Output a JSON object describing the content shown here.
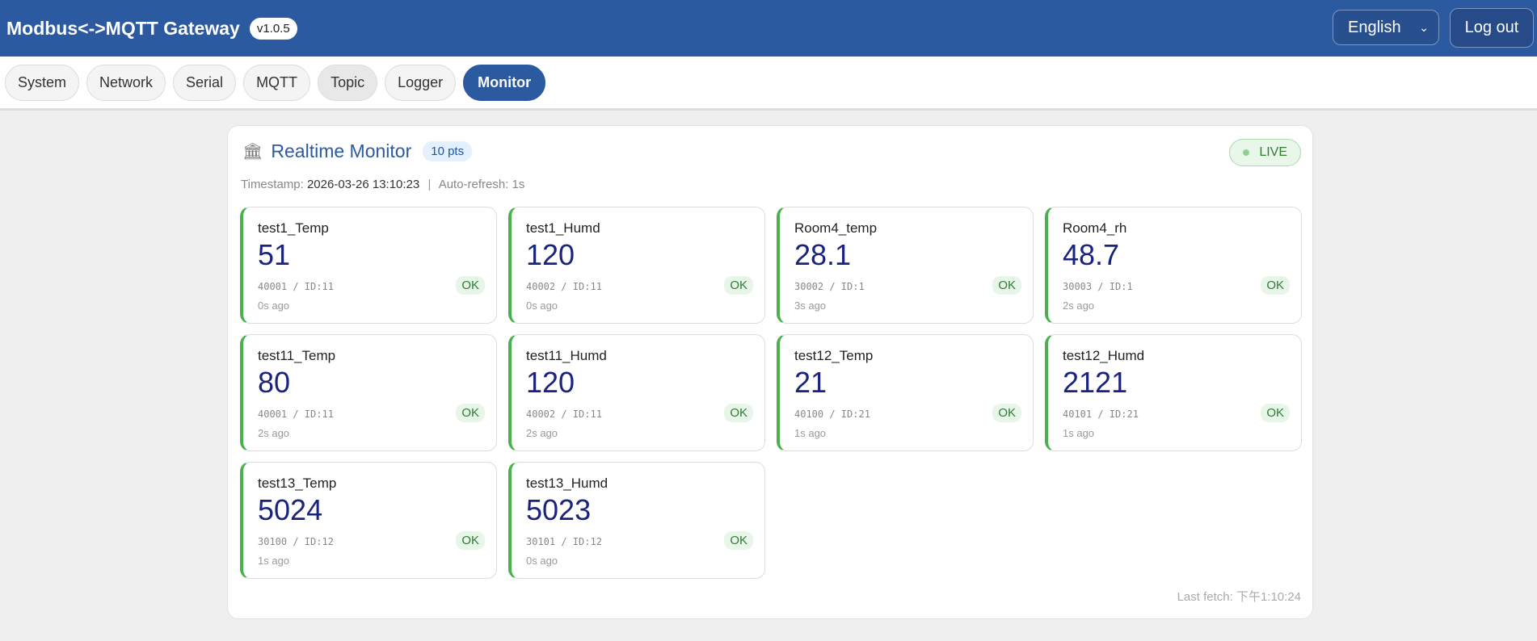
{
  "header": {
    "title": "Modbus<->MQTT Gateway",
    "version": "v1.0.5",
    "language": "English",
    "logout": "Log out"
  },
  "nav": {
    "tabs": [
      {
        "label": "System"
      },
      {
        "label": "Network"
      },
      {
        "label": "Serial"
      },
      {
        "label": "MQTT"
      },
      {
        "label": "Topic"
      },
      {
        "label": "Logger"
      },
      {
        "label": "Monitor"
      }
    ],
    "active": "Monitor"
  },
  "monitor": {
    "title": "Realtime Monitor",
    "count": "10 pts",
    "live": "LIVE",
    "timestamp_label": "Timestamp:",
    "timestamp": "2026-03-26 13:10:23",
    "separator": "|",
    "refresh": "Auto-refresh: 1s",
    "last_fetch": "Last fetch: 下午1:10:24",
    "points": [
      {
        "name": "test1_Temp",
        "value": "51",
        "addr": "40001 / ID:11",
        "status": "OK",
        "ago": "0s ago"
      },
      {
        "name": "test1_Humd",
        "value": "120",
        "addr": "40002 / ID:11",
        "status": "OK",
        "ago": "0s ago"
      },
      {
        "name": "Room4_temp",
        "value": "28.1",
        "addr": "30002 / ID:1",
        "status": "OK",
        "ago": "3s ago"
      },
      {
        "name": "Room4_rh",
        "value": "48.7",
        "addr": "30003 / ID:1",
        "status": "OK",
        "ago": "2s ago"
      },
      {
        "name": "test11_Temp",
        "value": "80",
        "addr": "40001 / ID:11",
        "status": "OK",
        "ago": "2s ago"
      },
      {
        "name": "test11_Humd",
        "value": "120",
        "addr": "40002 / ID:11",
        "status": "OK",
        "ago": "2s ago"
      },
      {
        "name": "test12_Temp",
        "value": "21",
        "addr": "40100 / ID:21",
        "status": "OK",
        "ago": "1s ago"
      },
      {
        "name": "test12_Humd",
        "value": "2121",
        "addr": "40101 / ID:21",
        "status": "OK",
        "ago": "1s ago"
      },
      {
        "name": "test13_Temp",
        "value": "5024",
        "addr": "30100 / ID:12",
        "status": "OK",
        "ago": "1s ago"
      },
      {
        "name": "test13_Humd",
        "value": "5023",
        "addr": "30101 / ID:12",
        "status": "OK",
        "ago": "0s ago"
      }
    ]
  },
  "colors": {
    "brand": "#2c5aa0",
    "ok": "#4caf50",
    "value": "#1a237e"
  }
}
